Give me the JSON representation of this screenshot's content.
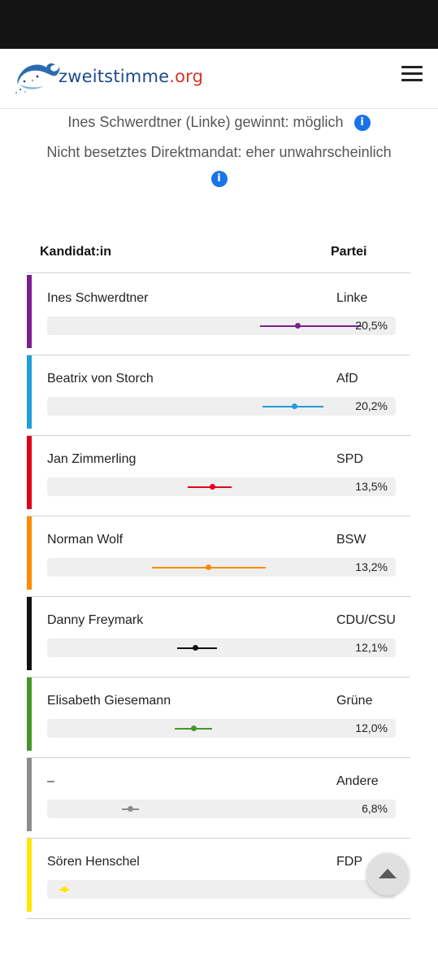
{
  "site": {
    "logo_name": "zweitstimme",
    "logo_tld": ".org"
  },
  "prognosis": {
    "line1": "Ines Schwerdtner (Linke) gewinnt: möglich",
    "line2": "Nicht besetztes Direktmandat: eher unwahrscheinlich"
  },
  "table": {
    "col_candidate": "Kandidat:in",
    "col_party": "Partei",
    "rows": [
      {
        "name": "Ines Schwerdtner",
        "party": "Linke",
        "value": "20,5%",
        "color": "#7a1f8f",
        "estimate": 20.5,
        "low": 17.4,
        "high": 25.7
      },
      {
        "name": "Beatrix von Storch",
        "party": "AfD",
        "value": "20,2%",
        "color": "#1e9fd8",
        "estimate": 20.2,
        "low": 17.6,
        "high": 22.6
      },
      {
        "name": "Jan Zimmerling",
        "party": "SPD",
        "value": "13,5%",
        "color": "#e0001b",
        "estimate": 13.5,
        "low": 11.5,
        "high": 15.1
      },
      {
        "name": "Norman Wolf",
        "party": "BSW",
        "value": "13,2%",
        "color": "#ff8a00",
        "estimate": 13.2,
        "low": 8.6,
        "high": 17.9
      },
      {
        "name": "Danny Freymark",
        "party": "CDU/CSU",
        "value": "12,1%",
        "color": "#111111",
        "estimate": 12.1,
        "low": 10.6,
        "high": 13.9
      },
      {
        "name": "Elisabeth Giesemann",
        "party": "Grüne",
        "value": "12,0%",
        "color": "#46962b",
        "estimate": 12.0,
        "low": 10.4,
        "high": 13.5
      },
      {
        "name": "–",
        "party": "Andere",
        "value": "6,8%",
        "color": "#8c8c8c",
        "estimate": 6.8,
        "low": 6.1,
        "high": 7.5
      },
      {
        "name": "Sören Henschel",
        "party": "FDP",
        "value": "1,",
        "color": "#ffe600",
        "estimate": 1.4,
        "low": 1.0,
        "high": 1.8
      }
    ]
  }
}
